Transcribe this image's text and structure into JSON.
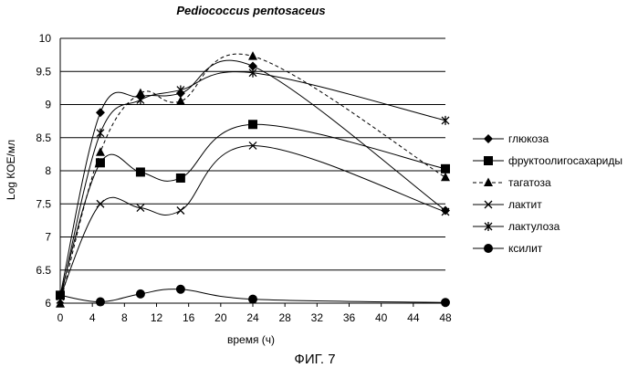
{
  "chart_data": {
    "type": "line",
    "title": "Pediococcus pentosaceus",
    "xlabel": "время (ч)",
    "ylabel": "Log КОЕ/мл",
    "caption": "ФИГ. 7",
    "xlim": [
      0,
      48
    ],
    "ylim": [
      6,
      10
    ],
    "x_ticks": [
      0,
      4,
      8,
      12,
      16,
      20,
      24,
      28,
      32,
      36,
      40,
      44,
      48
    ],
    "y_ticks": [
      6,
      6.5,
      7,
      7.5,
      8,
      8.5,
      9,
      9.5,
      10
    ],
    "y_tick_labels": [
      "6",
      "6.5",
      "7",
      "7.5",
      "8",
      "8.5",
      "9",
      "9.5",
      "10"
    ],
    "grid": "horizontal",
    "legend_position": "right",
    "x": [
      0,
      5,
      10,
      15,
      24,
      48
    ],
    "series": [
      {
        "name": "глюкоза",
        "marker": "diamond",
        "dash": "solid",
        "values": [
          6.12,
          8.88,
          9.12,
          9.17,
          9.58,
          7.4
        ]
      },
      {
        "name": "фруктоолигосахариды",
        "marker": "square",
        "dash": "solid",
        "values": [
          6.12,
          8.12,
          7.98,
          7.89,
          8.7,
          8.03
        ]
      },
      {
        "name": "тагатоза",
        "marker": "triangle",
        "dash": "dashed",
        "values": [
          5.99,
          8.28,
          9.17,
          9.05,
          9.73,
          7.9
        ]
      },
      {
        "name": "лактит",
        "marker": "x",
        "dash": "solid",
        "values": [
          6.1,
          7.5,
          7.44,
          7.4,
          8.38,
          7.38
        ]
      },
      {
        "name": "лактулоза",
        "marker": "asterisk",
        "dash": "solid",
        "values": [
          6.05,
          8.57,
          9.07,
          9.22,
          9.48,
          8.76
        ]
      },
      {
        "name": "ксилит",
        "marker": "circle",
        "dash": "solid",
        "values": [
          6.12,
          6.02,
          6.14,
          6.21,
          6.06,
          6.01
        ]
      }
    ]
  }
}
